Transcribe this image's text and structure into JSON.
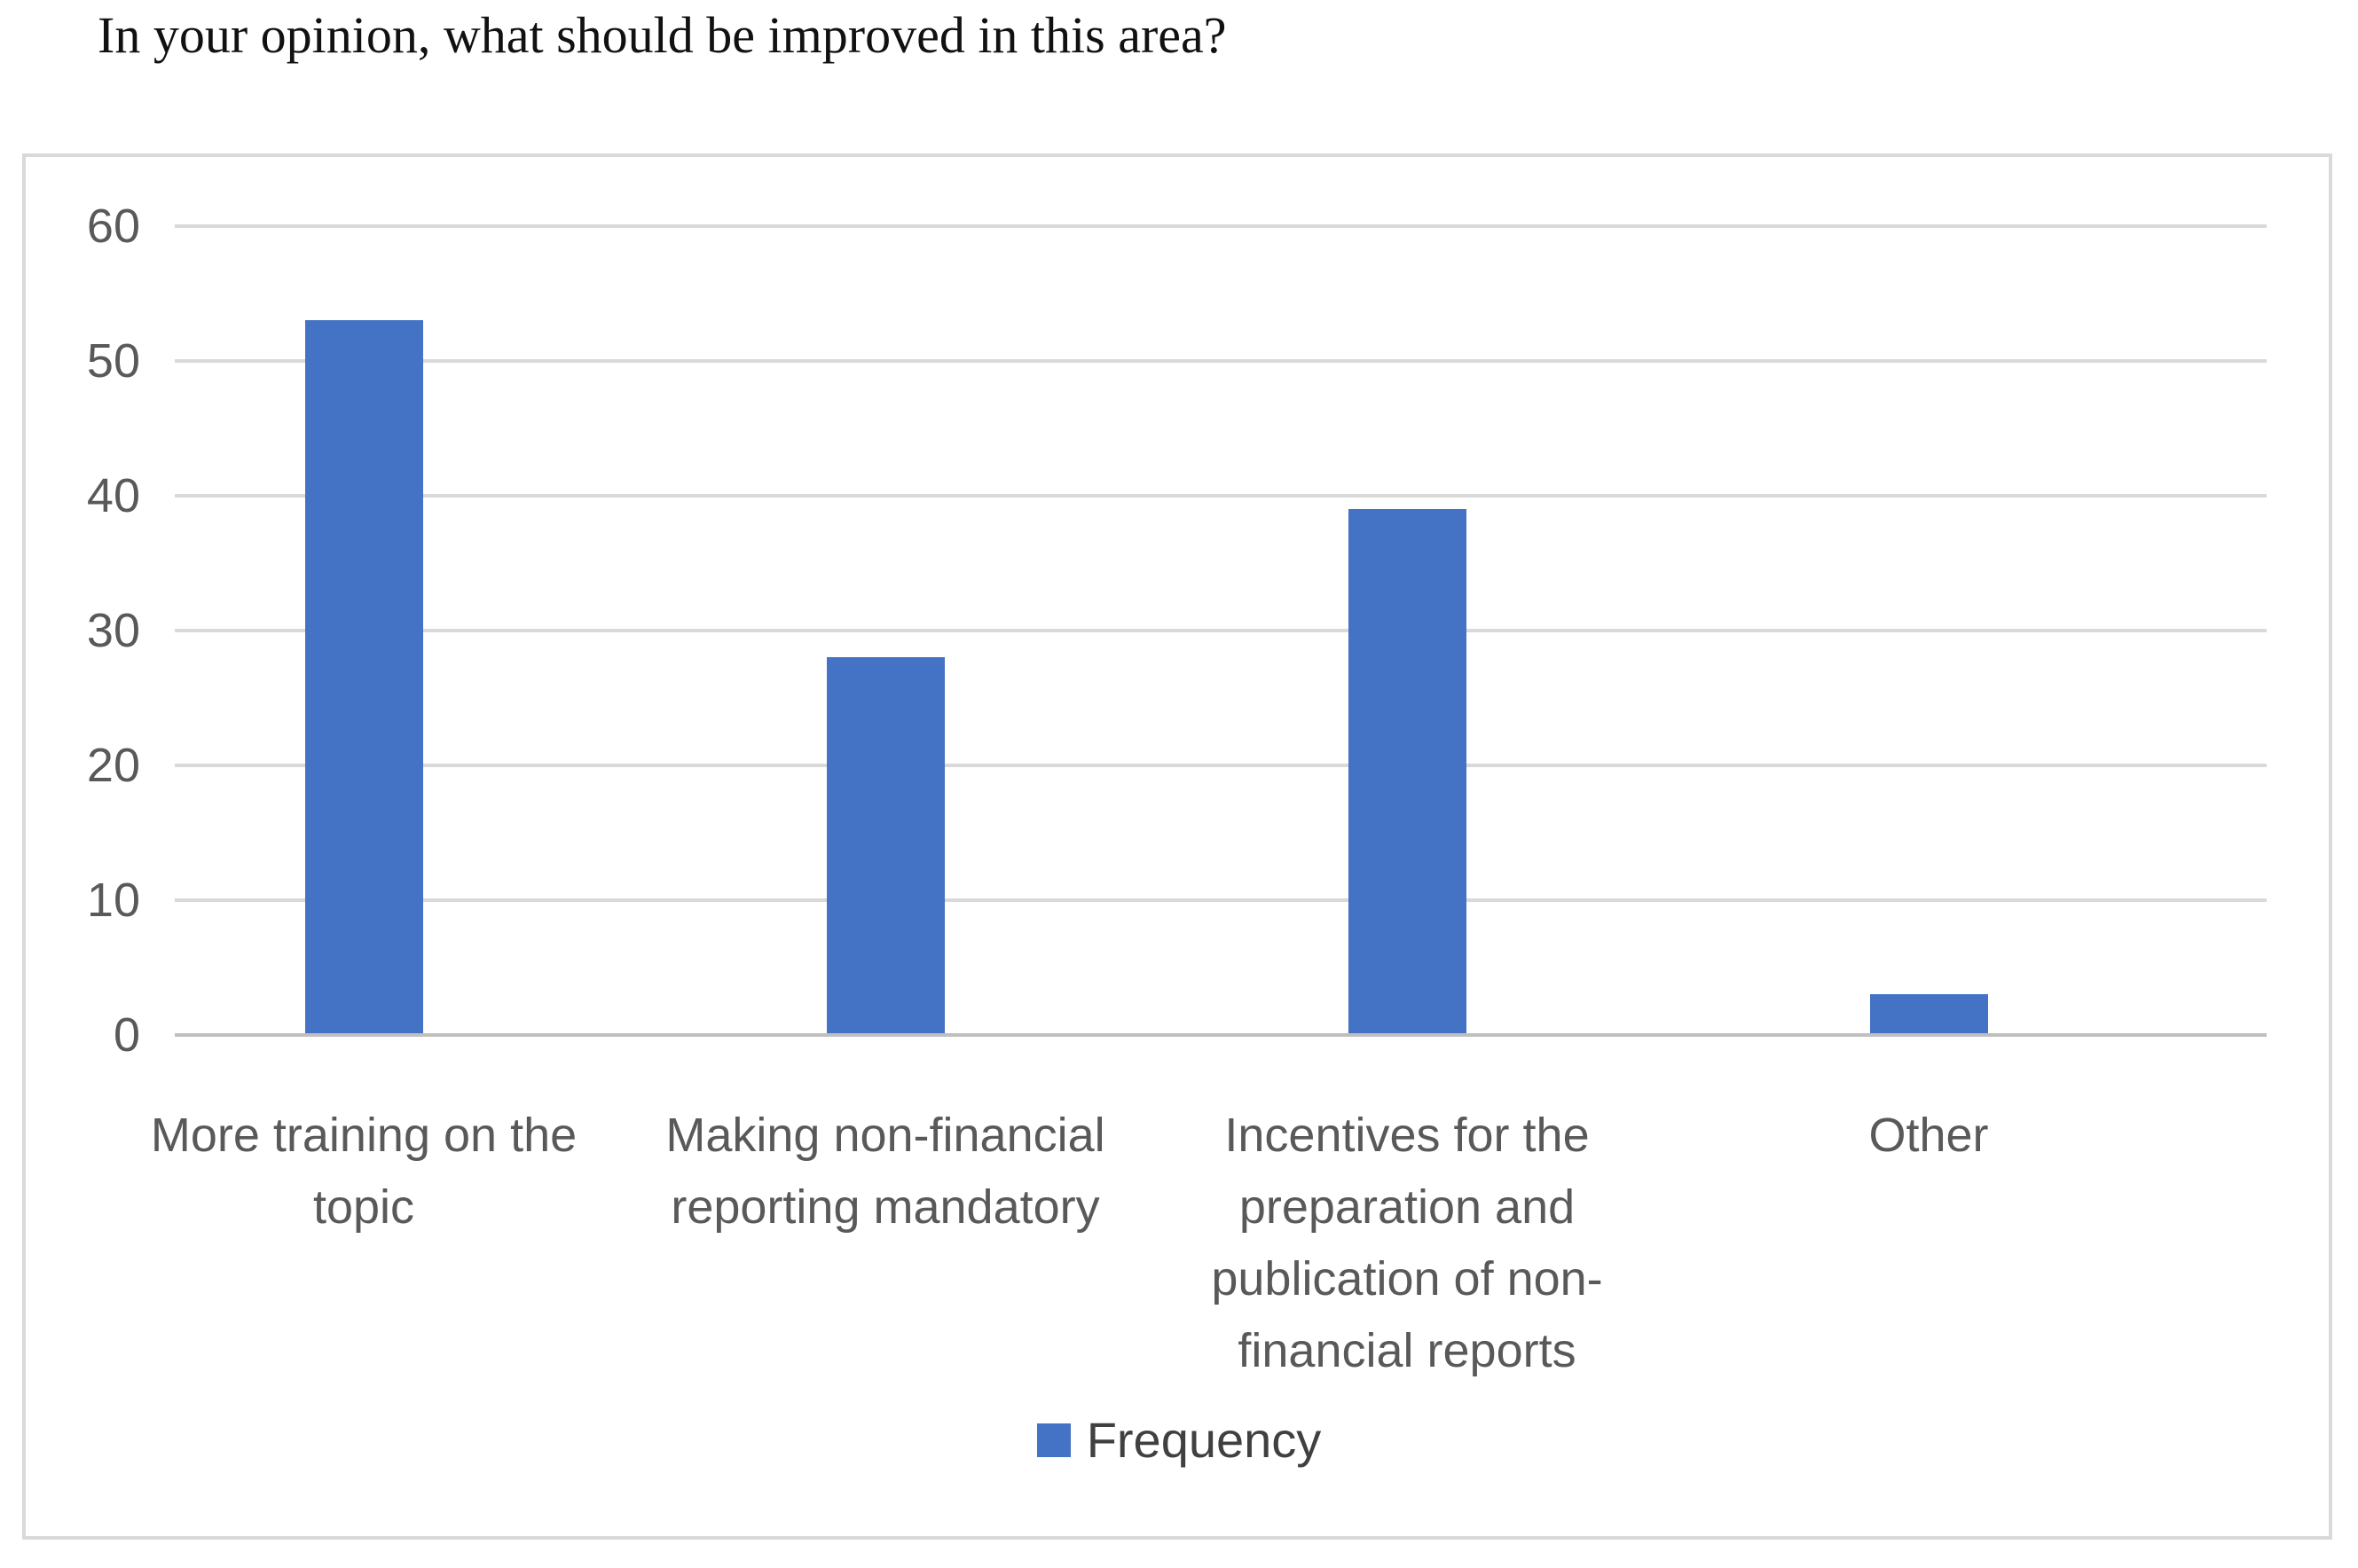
{
  "chart_data": {
    "type": "bar",
    "title": "In your opinion, what should be improved in this area?",
    "categories": [
      "More training on the topic",
      "Making non-financial reporting mandatory",
      "Incentives for the preparation and publication of non-financial reports",
      "Other"
    ],
    "series": [
      {
        "name": "Frequency",
        "values": [
          53,
          28,
          39,
          3
        ]
      }
    ],
    "xlabel": "",
    "ylabel": "",
    "ylim": [
      0,
      60
    ],
    "yticks": [
      0,
      10,
      20,
      30,
      40,
      50,
      60
    ],
    "grid": "horizontal",
    "legend_position": "bottom",
    "colors": {
      "bar": "#4472c4",
      "gridline": "#d9d9d9",
      "axis_line": "#bfbfbf",
      "tick_text": "#595959",
      "category_text": "#595959",
      "legend_text": "#404040",
      "title_text": "#111111",
      "frame_border": "#d9d9d9",
      "background": "#ffffff"
    }
  }
}
